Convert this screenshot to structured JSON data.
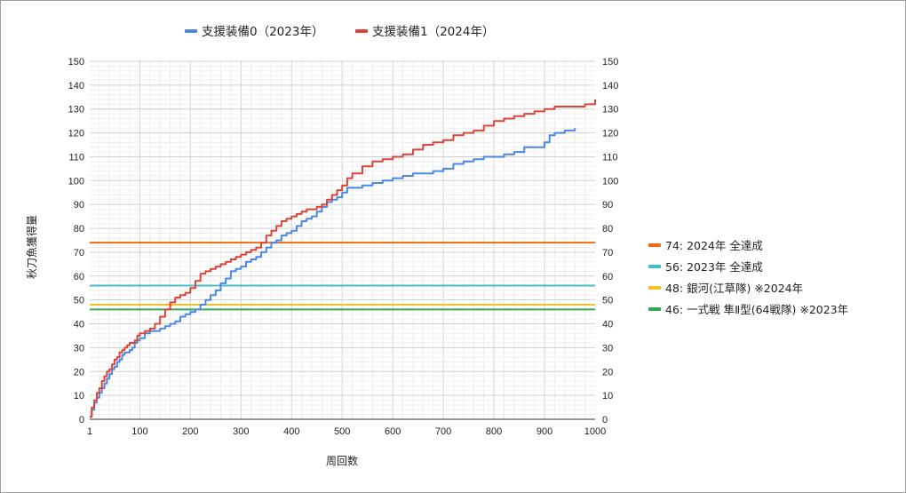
{
  "chart_data": {
    "type": "line",
    "xlabel": "周回数",
    "ylabel": "秋刀魚獲得量",
    "xlim": [
      1,
      1000
    ],
    "ylim": [
      0,
      150
    ],
    "xticks": [
      1,
      100,
      200,
      300,
      400,
      500,
      600,
      700,
      800,
      900,
      1000
    ],
    "yticks": [
      0,
      10,
      20,
      30,
      40,
      50,
      60,
      70,
      80,
      90,
      100,
      110,
      120,
      130,
      140,
      150
    ],
    "grid": true,
    "legend_top": "top-center",
    "legend_right": "right",
    "series": [
      {
        "name": "支援装備0（2023年）",
        "color": "#4a86e8",
        "x": [
          1,
          5,
          10,
          15,
          20,
          25,
          30,
          35,
          40,
          45,
          50,
          55,
          60,
          65,
          70,
          75,
          80,
          85,
          90,
          95,
          100,
          110,
          120,
          130,
          140,
          150,
          160,
          170,
          180,
          190,
          200,
          210,
          220,
          230,
          240,
          250,
          260,
          270,
          280,
          290,
          300,
          310,
          320,
          330,
          340,
          350,
          360,
          370,
          380,
          390,
          400,
          410,
          420,
          430,
          440,
          450,
          460,
          470,
          480,
          490,
          500,
          510,
          520,
          540,
          560,
          580,
          600,
          620,
          640,
          660,
          680,
          700,
          720,
          740,
          760,
          780,
          800,
          820,
          840,
          860,
          880,
          900,
          910,
          920,
          940,
          960
        ],
        "y": [
          1,
          4,
          7,
          9,
          11,
          13,
          15,
          17,
          19,
          21,
          22,
          24,
          25,
          27,
          28,
          28,
          29,
          30,
          32,
          33,
          34,
          36,
          37,
          37,
          38,
          39,
          40,
          41,
          43,
          44,
          45,
          46,
          48,
          50,
          52,
          54,
          57,
          59,
          62,
          63,
          64,
          66,
          67,
          68,
          70,
          72,
          74,
          75,
          77,
          78,
          79,
          81,
          83,
          84,
          85,
          87,
          89,
          91,
          92,
          93,
          95,
          97,
          97,
          98,
          99,
          100,
          101,
          102,
          103,
          103,
          104,
          105,
          107,
          108,
          109,
          110,
          110,
          111,
          112,
          114,
          114,
          116,
          119,
          120,
          121,
          122
        ]
      },
      {
        "name": "支援装備1（2024年）",
        "color": "#db4437",
        "x": [
          1,
          5,
          10,
          15,
          20,
          25,
          30,
          35,
          40,
          45,
          50,
          55,
          60,
          65,
          70,
          75,
          80,
          85,
          90,
          95,
          100,
          110,
          120,
          130,
          140,
          150,
          160,
          170,
          180,
          190,
          200,
          210,
          220,
          230,
          240,
          250,
          260,
          270,
          280,
          290,
          300,
          310,
          320,
          330,
          340,
          350,
          360,
          370,
          380,
          390,
          400,
          410,
          420,
          430,
          440,
          450,
          460,
          470,
          480,
          490,
          500,
          510,
          520,
          540,
          560,
          580,
          600,
          620,
          640,
          660,
          680,
          700,
          720,
          740,
          760,
          780,
          800,
          820,
          840,
          860,
          880,
          900,
          920,
          940,
          960,
          980,
          995,
          1000
        ],
        "y": [
          1,
          5,
          8,
          11,
          13,
          16,
          18,
          20,
          21,
          23,
          25,
          26,
          28,
          29,
          30,
          31,
          32,
          32,
          33,
          35,
          36,
          37,
          38,
          40,
          43,
          46,
          49,
          51,
          52,
          53,
          55,
          58,
          61,
          62,
          63,
          64,
          65,
          66,
          67,
          68,
          69,
          70,
          71,
          72,
          74,
          77,
          79,
          81,
          83,
          84,
          85,
          86,
          87,
          88,
          88,
          89,
          90,
          92,
          94,
          96,
          98,
          101,
          103,
          106,
          108,
          109,
          110,
          111,
          113,
          115,
          116,
          117,
          119,
          120,
          121,
          123,
          125,
          126,
          127,
          128,
          129,
          130,
          131,
          131,
          131,
          132,
          132,
          134
        ]
      }
    ],
    "reference_lines": [
      {
        "label": "74: 2024年 全達成",
        "value": 74,
        "color": "#f06b0f"
      },
      {
        "label": "56: 2023年 全達成",
        "value": 56,
        "color": "#46bdc6"
      },
      {
        "label": "48: 銀河(江草隊) ※2024年",
        "value": 48,
        "color": "#f6c026"
      },
      {
        "label": "46: 一式戦 隼Ⅱ型(64戦隊) ※2023年",
        "value": 46,
        "color": "#34a853"
      }
    ]
  }
}
